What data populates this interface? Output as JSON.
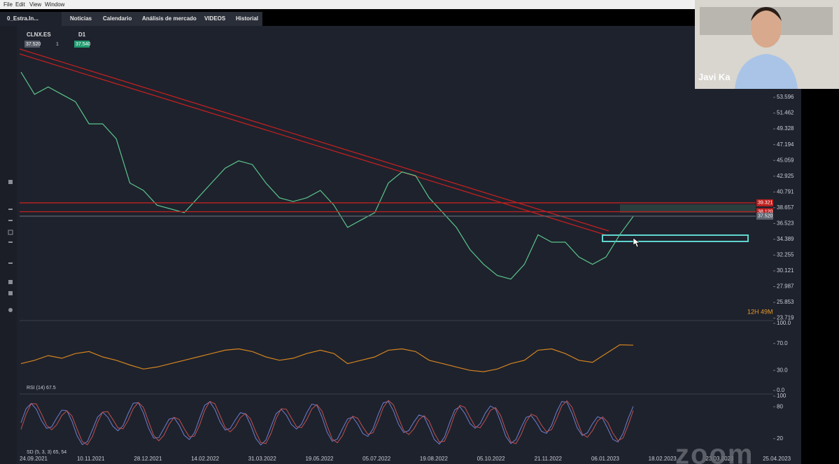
{
  "menu": [
    "File",
    "Edit",
    "View",
    "Window"
  ],
  "tabs": [
    "0_Estra.In...",
    "Noticias",
    "Calendario",
    "Análisis de mercado",
    "VIDEOS",
    "Historial"
  ],
  "toolbar": {
    "symbol": "CLNX.ES",
    "timeframe": "D1",
    "bid": "37.520",
    "volume": "1",
    "ask": "37.540"
  },
  "price_chart": {
    "type": "line",
    "ylim": [
      23.4,
      62.5
    ],
    "yticks": [
      53.596,
      51.462,
      49.328,
      47.194,
      45.059,
      42.925,
      40.791,
      38.657,
      36.523,
      34.389,
      32.255,
      30.121,
      27.987,
      25.853,
      23.719
    ],
    "markers": [
      {
        "value": 39.321,
        "label": "39.321"
      },
      {
        "value": 38.12,
        "label": "38.120"
      },
      {
        "value": 37.52,
        "label": "37.520"
      }
    ],
    "values": [
      57,
      54,
      55,
      54,
      53,
      50,
      50,
      48,
      42,
      41,
      39,
      38.5,
      38,
      40,
      42,
      44,
      45,
      44.5,
      42,
      40,
      39.5,
      40,
      41,
      39,
      36,
      37,
      38,
      42,
      43.5,
      43,
      40,
      38,
      36,
      33,
      31,
      29.5,
      29,
      31,
      35,
      34,
      34,
      32,
      31,
      32,
      35,
      37.5
    ],
    "countdown": "12H 49M"
  },
  "rsi": {
    "label": "RSI (14) 67.5",
    "ylim": [
      0,
      100
    ],
    "yticks": [
      {
        "value": 100,
        "label": "100.0"
      },
      {
        "value": 70,
        "label": "70.0"
      },
      {
        "value": 30,
        "label": "30.0"
      },
      {
        "value": 0,
        "label": "0.0"
      }
    ],
    "values": [
      40,
      45,
      52,
      48,
      55,
      58,
      50,
      45,
      38,
      32,
      35,
      40,
      45,
      50,
      55,
      60,
      62,
      58,
      50,
      45,
      48,
      55,
      60,
      55,
      40,
      45,
      50,
      60,
      62,
      58,
      45,
      40,
      35,
      30,
      28,
      32,
      40,
      45,
      60,
      62,
      55,
      45,
      42,
      55,
      68,
      67.5
    ]
  },
  "stoch": {
    "label": "SD (5, 3, 3) 65, 54",
    "ylim": [
      0,
      100
    ],
    "yticks": [
      100,
      80,
      20
    ]
  },
  "dates": [
    "24.09.2021",
    "10.11.2021",
    "28.12.2021",
    "14.02.2022",
    "31.03.2022",
    "19.05.2022",
    "05.07.2022",
    "19.08.2022",
    "05.10.2022",
    "21.11.2022",
    "06.01.2023",
    "18.02.2023",
    "23.03.2023",
    "25.04.2023"
  ],
  "video": {
    "name": "Javi Ka",
    "watermark": "zoom"
  }
}
